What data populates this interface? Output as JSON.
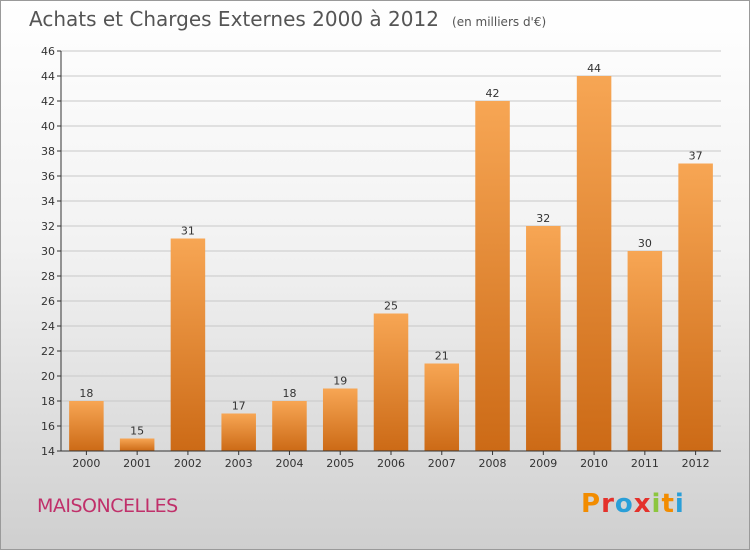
{
  "header": {
    "title": "Achats et Charges Externes 2000 à 2012",
    "subtitle": "(en milliers d'€)"
  },
  "footer": {
    "commune": "MAISONCELLES",
    "logo_text": "Proxiti",
    "logo_colors": [
      "#f28c00",
      "#e4312b",
      "#2a9fd8",
      "#e4312b",
      "#8cc63e",
      "#f28c00",
      "#2a9fd8"
    ]
  },
  "colors": {
    "bar_light": "#f7a654",
    "bar_dark": "#cc6a16",
    "grid": "#c8c8c8",
    "axis": "#333333"
  },
  "chart_data": {
    "type": "bar",
    "title": "Achats et Charges Externes 2000 à 2012",
    "subtitle": "(en milliers d'€)",
    "xlabel": "",
    "ylabel": "",
    "categories": [
      "2000",
      "2001",
      "2002",
      "2003",
      "2004",
      "2005",
      "2006",
      "2007",
      "2008",
      "2009",
      "2010",
      "2011",
      "2012"
    ],
    "values": [
      18,
      15,
      31,
      17,
      18,
      19,
      25,
      21,
      42,
      32,
      44,
      30,
      37
    ],
    "ylim": [
      14,
      46
    ],
    "yticks": [
      14,
      16,
      18,
      20,
      22,
      24,
      26,
      28,
      30,
      32,
      34,
      36,
      38,
      40,
      42,
      44,
      46
    ],
    "grid": true,
    "legend": "none"
  }
}
